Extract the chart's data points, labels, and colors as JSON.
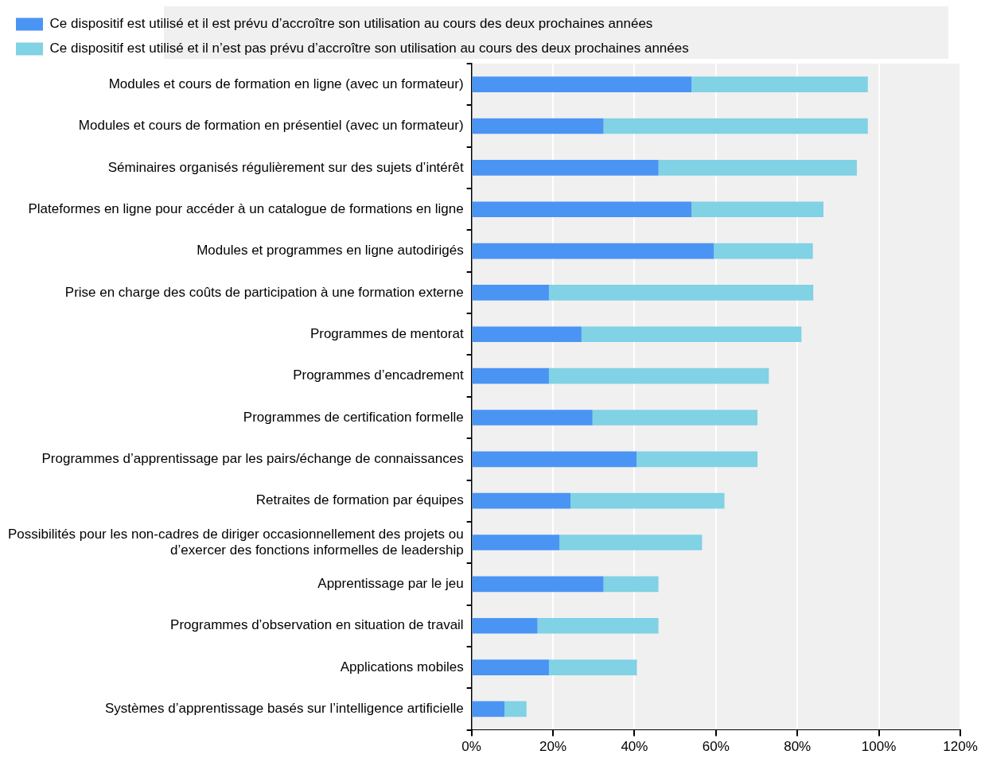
{
  "chart_data": {
    "type": "bar",
    "orientation": "horizontal",
    "stacked": true,
    "categories": [
      "Modules et cours de formation en ligne (avec un formateur)",
      "Modules et cours de formation en présentiel (avec un formateur)",
      "Séminaires organisés régulièrement sur des sujets d’intérêt",
      "Plateformes en ligne pour accéder à un catalogue de formations en ligne",
      "Modules et programmes en ligne autodirigés",
      "Prise en charge des coûts de participation à une formation externe",
      "Programmes de mentorat",
      "Programmes d’encadrement",
      "Programmes de certification formelle",
      "Programmes d’apprentissage par les pairs/échange de connaissances",
      "Retraites de formation par équipes",
      "Possibilités pour les non-cadres de diriger occasionnellement des projets ou d’exercer des fonctions informelles de leadership",
      "Apprentissage par le jeu",
      "Programmes d’observation en situation de travail",
      "Applications mobiles",
      "Systèmes d’apprentissage basés sur l’intelligence artificielle"
    ],
    "series": [
      {
        "name": "Ce dispositif est utilisé et il est prévu d’accroître son utilisation au cours des deux prochaines années",
        "color": "#4a94f4",
        "values": [
          54,
          32.4,
          45.9,
          54,
          59.5,
          19,
          27,
          19,
          29.7,
          40.5,
          24.3,
          21.6,
          32.4,
          16.2,
          19,
          8.1
        ]
      },
      {
        "name": "Ce dispositif est utilisé et il n’est pas prévu d’accroître son utilisation au cours des deux prochaines années",
        "color": "#80d2e4",
        "values": [
          43.3,
          64.9,
          48.7,
          32.4,
          24.3,
          64.9,
          54,
          54,
          40.5,
          29.7,
          37.8,
          35,
          13.5,
          29.7,
          21.6,
          5.4
        ]
      }
    ],
    "xlim": [
      0,
      120
    ],
    "xticks": [
      {
        "value": 0,
        "label": "0%"
      },
      {
        "value": 20,
        "label": "20%"
      },
      {
        "value": 40,
        "label": "40%"
      },
      {
        "value": 60,
        "label": "60%"
      },
      {
        "value": 80,
        "label": "80%"
      },
      {
        "value": 100,
        "label": "100%"
      },
      {
        "value": 120,
        "label": "120%"
      }
    ],
    "grid": "x",
    "legend": "top"
  }
}
